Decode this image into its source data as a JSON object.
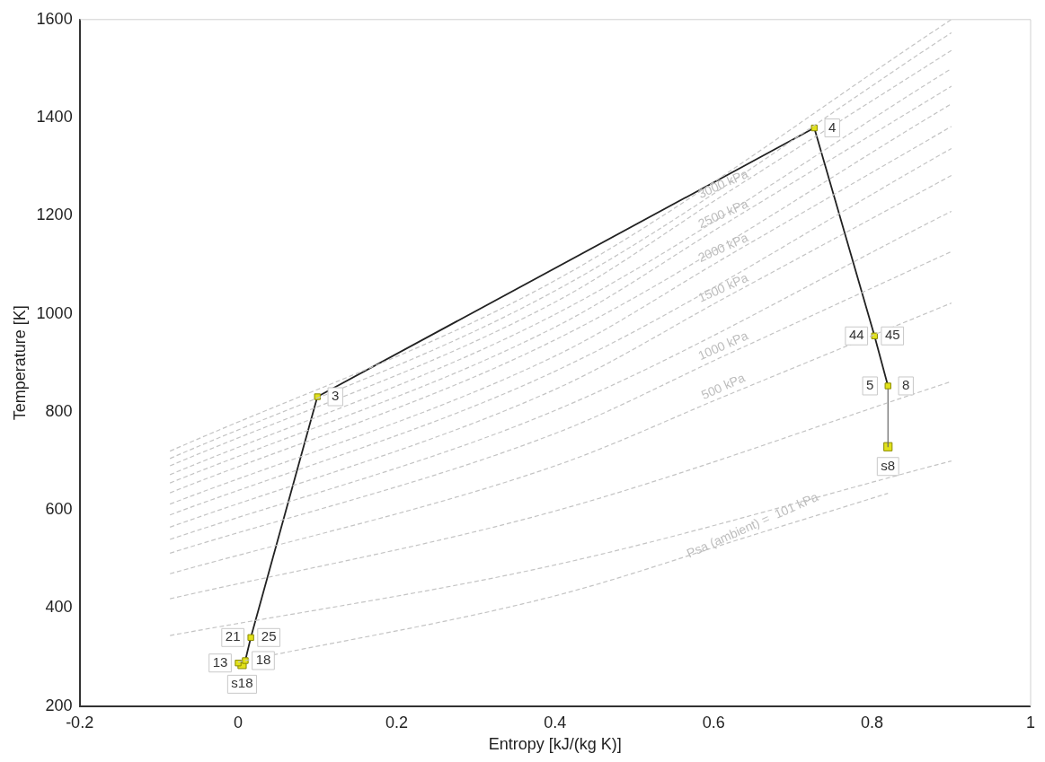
{
  "chart_data": {
    "type": "line",
    "xlabel": "Entropy [kJ/(kg K)]",
    "ylabel": "Temperature [K]",
    "xlim": [
      -0.2,
      1
    ],
    "xticks": [
      -0.2,
      0,
      0.2,
      0.4,
      0.6,
      0.8,
      1
    ],
    "ylim": [
      200,
      1600
    ],
    "yticks": [
      200,
      400,
      600,
      800,
      1000,
      1200,
      1400,
      1600
    ],
    "grid": false,
    "legend": false,
    "marker": "square",
    "series": [
      {
        "type": "line",
        "color": "#c4c4c4",
        "line_style": "dashed",
        "marker": "none",
        "x": [
          -0.086,
          0.4,
          0.9
        ],
        "values": [
          720,
          1068,
          1600
        ]
      },
      {
        "type": "line",
        "color": "#c4c4c4",
        "line_style": "dashed",
        "marker": "none",
        "x": [
          -0.086,
          0.4,
          0.9
        ],
        "values": [
          705,
          1047,
          1573
        ]
      },
      {
        "type": "line",
        "color": "#c4c4c4",
        "line_style": "dashed",
        "marker": "none",
        "x": [
          -0.086,
          0.4,
          0.617,
          0.9
        ],
        "values": [
          690,
          1024,
          1247,
          1537
        ]
      },
      {
        "type": "line",
        "color": "#c4c4c4",
        "line_style": "dashed",
        "marker": "none",
        "x": [
          -0.086,
          0.4,
          0.9
        ],
        "values": [
          672,
          999,
          1500
        ]
      },
      {
        "type": "line",
        "color": "#c4c4c4",
        "line_style": "dashed",
        "marker": "none",
        "x": [
          -0.086,
          0.4,
          0.617,
          0.9
        ],
        "values": [
          655,
          973,
          1186,
          1464
        ]
      },
      {
        "type": "line",
        "color": "#c4c4c4",
        "line_style": "dashed",
        "marker": "none",
        "x": [
          -0.086,
          0.4,
          0.9
        ],
        "values": [
          635,
          947,
          1428
        ]
      },
      {
        "type": "line",
        "color": "#c4c4c4",
        "line_style": "dashed",
        "marker": "none",
        "x": [
          -0.086,
          0.4,
          0.617,
          0.9
        ],
        "values": [
          612,
          914,
          1117,
          1382
        ]
      },
      {
        "type": "line",
        "color": "#c4c4c4",
        "line_style": "dashed",
        "marker": "none",
        "x": [
          -0.086,
          0.4,
          0.9
        ],
        "values": [
          590,
          883,
          1337
        ]
      },
      {
        "type": "line",
        "color": "#c4c4c4",
        "line_style": "dashed",
        "marker": "none",
        "x": [
          -0.086,
          0.4,
          0.617,
          0.9
        ],
        "values": [
          565,
          846,
          1035,
          1282
        ]
      },
      {
        "type": "line",
        "color": "#c4c4c4",
        "line_style": "dashed",
        "marker": "none",
        "x": [
          -0.086,
          0.4,
          0.9
        ],
        "values": [
          540,
          803,
          1209
        ]
      },
      {
        "type": "line",
        "color": "#c4c4c4",
        "line_style": "dashed",
        "marker": "none",
        "x": [
          -0.086,
          0.4,
          0.617,
          0.9
        ],
        "values": [
          512,
          756,
          917,
          1127
        ]
      },
      {
        "type": "line",
        "color": "#c4c4c4",
        "line_style": "dashed",
        "marker": "none",
        "x": [
          -0.086,
          0.4,
          0.617,
          0.9
        ],
        "values": [
          470,
          690,
          834,
          1022
        ]
      },
      {
        "type": "line",
        "color": "#c4c4c4",
        "line_style": "dashed",
        "marker": "none",
        "x": [
          -0.086,
          0.4,
          0.9
        ],
        "values": [
          419,
          598,
          862
        ]
      },
      {
        "type": "line",
        "color": "#c4c4c4",
        "line_style": "dashed",
        "marker": "none",
        "x": [
          -0.086,
          0.4,
          0.9
        ],
        "values": [
          344,
          488,
          700
        ]
      },
      {
        "type": "line",
        "color": "#c4c4c4",
        "line_style": "dashed",
        "marker": "none",
        "x": [
          0,
          0.4,
          0.654,
          0.82
        ],
        "values": [
          290,
          425,
          551,
          634
        ]
      },
      {
        "type": "line",
        "color": "#222222",
        "x": [
          0,
          0.009,
          0.016,
          0.1,
          0.727,
          0.803,
          0.82
        ],
        "values": [
          288,
          293,
          340,
          831,
          1379,
          955,
          853
        ]
      },
      {
        "type": "line",
        "color": "#666666",
        "marker": "none",
        "x": [
          0.82,
          0.82
        ],
        "values": [
          853,
          729
        ]
      },
      {
        "type": "scatter",
        "color": "#e2e21a",
        "x": [
          0.82,
          0.005
        ],
        "values": [
          729,
          285
        ]
      }
    ],
    "annotations": [
      {
        "text": "3000 kPa",
        "x": 0.617,
        "y": 1247
      },
      {
        "text": "2500 kPa",
        "x": 0.617,
        "y": 1186
      },
      {
        "text": "2000 kPa",
        "x": 0.617,
        "y": 1117
      },
      {
        "text": "1500 kPa",
        "x": 0.617,
        "y": 1035
      },
      {
        "text": "1000 kPa",
        "x": 0.617,
        "y": 917
      },
      {
        "text": "500 kPa",
        "x": 0.617,
        "y": 834
      },
      {
        "text": "Psa (ambient) =  101 kPa",
        "x": 0.654,
        "y": 551
      },
      {
        "text": "13",
        "x": 0,
        "y": 288
      },
      {
        "text": "18",
        "x": 0.009,
        "y": 293
      },
      {
        "text": "21",
        "x": 0.016,
        "y": 340
      },
      {
        "text": "25",
        "x": 0.016,
        "y": 340
      },
      {
        "text": "3",
        "x": 0.1,
        "y": 831
      },
      {
        "text": "4",
        "x": 0.727,
        "y": 1379
      },
      {
        "text": "44",
        "x": 0.803,
        "y": 955
      },
      {
        "text": "45",
        "x": 0.803,
        "y": 955
      },
      {
        "text": "5",
        "x": 0.82,
        "y": 853
      },
      {
        "text": "8",
        "x": 0.82,
        "y": 853
      },
      {
        "text": "s8",
        "x": 0.82,
        "y": 729
      },
      {
        "text": "s18",
        "x": 0.005,
        "y": 285
      }
    ]
  }
}
